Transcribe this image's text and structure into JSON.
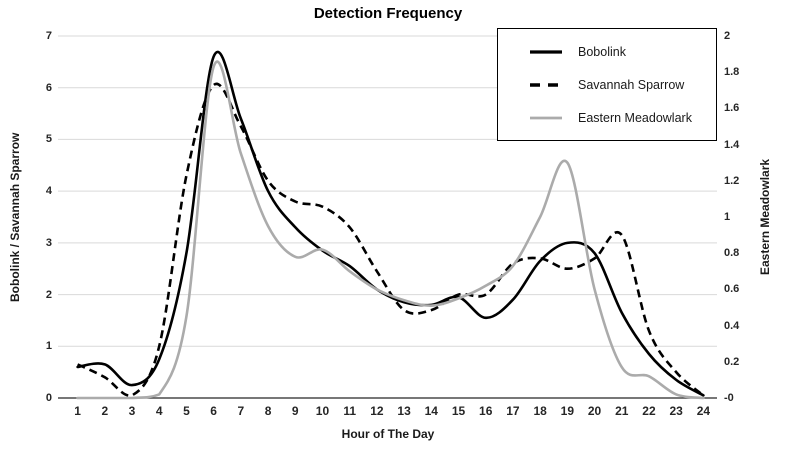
{
  "chart_data": {
    "type": "line",
    "title": "Detection Frequency",
    "xlabel": "Hour of The Day",
    "categories": [
      1,
      2,
      3,
      4,
      5,
      6,
      7,
      8,
      9,
      10,
      11,
      12,
      13,
      14,
      15,
      16,
      17,
      18,
      19,
      20,
      21,
      22,
      23,
      24
    ],
    "left_axis": {
      "label": "Bobolink / Savannah Sparrow",
      "min": 0,
      "max": 7,
      "ticks": [
        "7",
        "6",
        "5",
        "4",
        "3",
        "2",
        "1",
        "0"
      ]
    },
    "right_axis": {
      "label": "Eastern Meadowlark",
      "min": 0,
      "max": 2,
      "ticks": [
        "2",
        "1.8",
        "1.6",
        "1.4",
        "1.2",
        "1",
        "0.8",
        "0.6",
        "0.4",
        "0.2",
        "-0"
      ]
    },
    "grid": "horizontal",
    "gridline_color": "#d9d9d9",
    "axis_line_color": "#262626",
    "legend_position": "top-right",
    "series": [
      {
        "name": "Bobolink",
        "axis": "left",
        "color": "#000000",
        "style": "solid",
        "values": [
          0.6,
          0.65,
          0.25,
          0.75,
          2.8,
          6.6,
          5.4,
          4.0,
          3.3,
          2.85,
          2.55,
          2.1,
          1.85,
          1.8,
          1.95,
          1.55,
          1.9,
          2.65,
          3.0,
          2.8,
          1.65,
          0.85,
          0.35,
          0.05
        ]
      },
      {
        "name": "Savannah Sparrow",
        "axis": "left",
        "color": "#000000",
        "style": "dashed",
        "values": [
          0.65,
          0.4,
          0.05,
          1.0,
          4.3,
          6.05,
          5.25,
          4.2,
          3.8,
          3.7,
          3.3,
          2.45,
          1.7,
          1.7,
          2.0,
          2.0,
          2.6,
          2.7,
          2.5,
          2.7,
          3.15,
          1.3,
          0.5,
          0.05
        ]
      },
      {
        "name": "Eastern Meadowlark",
        "axis": "right",
        "color": "#ababab",
        "style": "solid",
        "values": [
          0,
          0,
          0,
          0.02,
          0.45,
          1.83,
          1.35,
          0.95,
          0.78,
          0.82,
          0.7,
          0.6,
          0.54,
          0.51,
          0.55,
          0.62,
          0.73,
          1.0,
          1.3,
          0.6,
          0.17,
          0.12,
          0.02,
          0
        ]
      }
    ]
  }
}
